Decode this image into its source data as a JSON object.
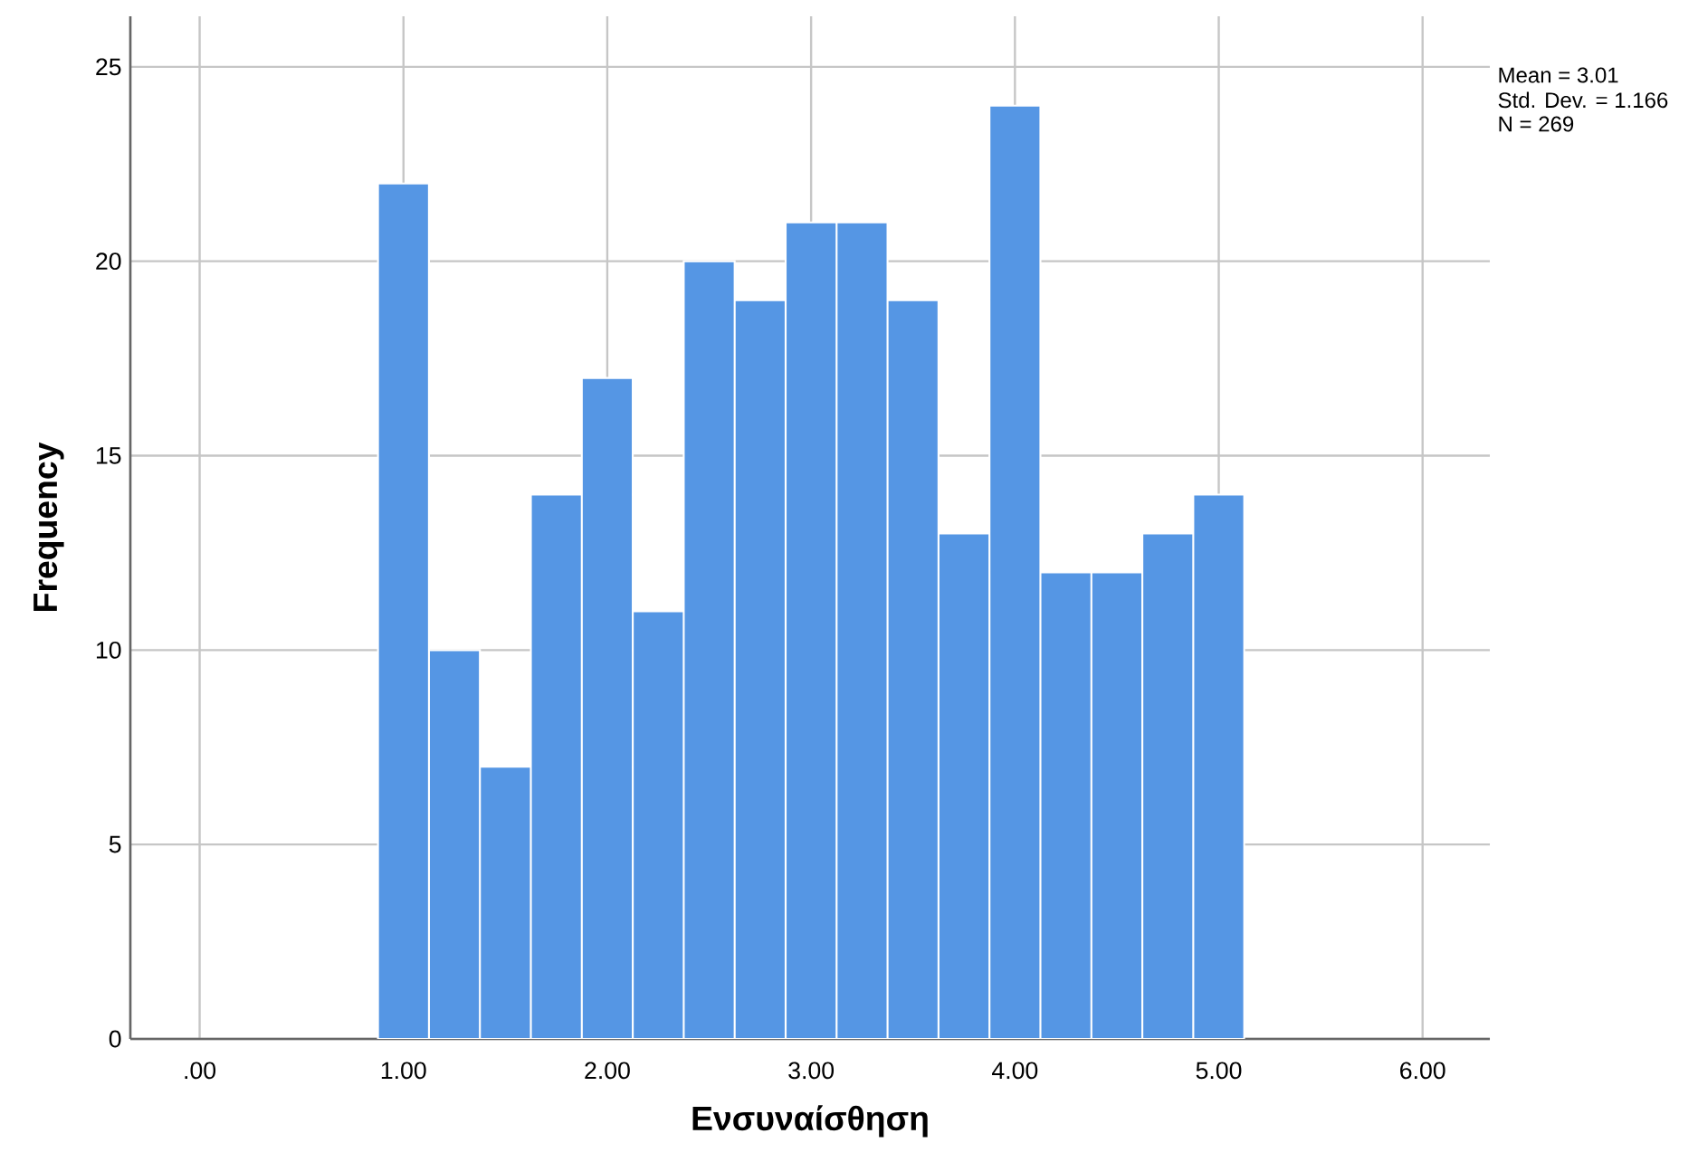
{
  "chart_data": {
    "type": "histogram",
    "xlabel": "Ενσυναίσθηση",
    "ylabel": "Frequency",
    "bins": [
      0.875,
      1.125,
      1.375,
      1.625,
      1.875,
      2.125,
      2.375,
      2.625,
      2.875,
      3.125,
      3.375,
      3.625,
      3.875,
      4.125,
      4.375,
      4.625,
      4.875,
      5.125
    ],
    "values": [
      22,
      10,
      7,
      14,
      17,
      11,
      20,
      19,
      21,
      21,
      19,
      13,
      24,
      12,
      12,
      13,
      14
    ],
    "color": "#5596e4",
    "xlim": [
      -0.34,
      6.33
    ],
    "ylim": [
      0,
      26.3
    ],
    "xticks": [
      {
        "value": 0,
        "label": ".00"
      },
      {
        "value": 1,
        "label": "1.00"
      },
      {
        "value": 2,
        "label": "2.00"
      },
      {
        "value": 3,
        "label": "3.00"
      },
      {
        "value": 4,
        "label": "4.00"
      },
      {
        "value": 5,
        "label": "5.00"
      },
      {
        "value": 6,
        "label": "6.00"
      }
    ],
    "yticks": [
      0,
      5,
      10,
      15,
      20,
      25
    ],
    "grid": true,
    "annotations": [
      "Mean = 3.01",
      "Std. Dev. = 1.166",
      "N = 269"
    ]
  }
}
